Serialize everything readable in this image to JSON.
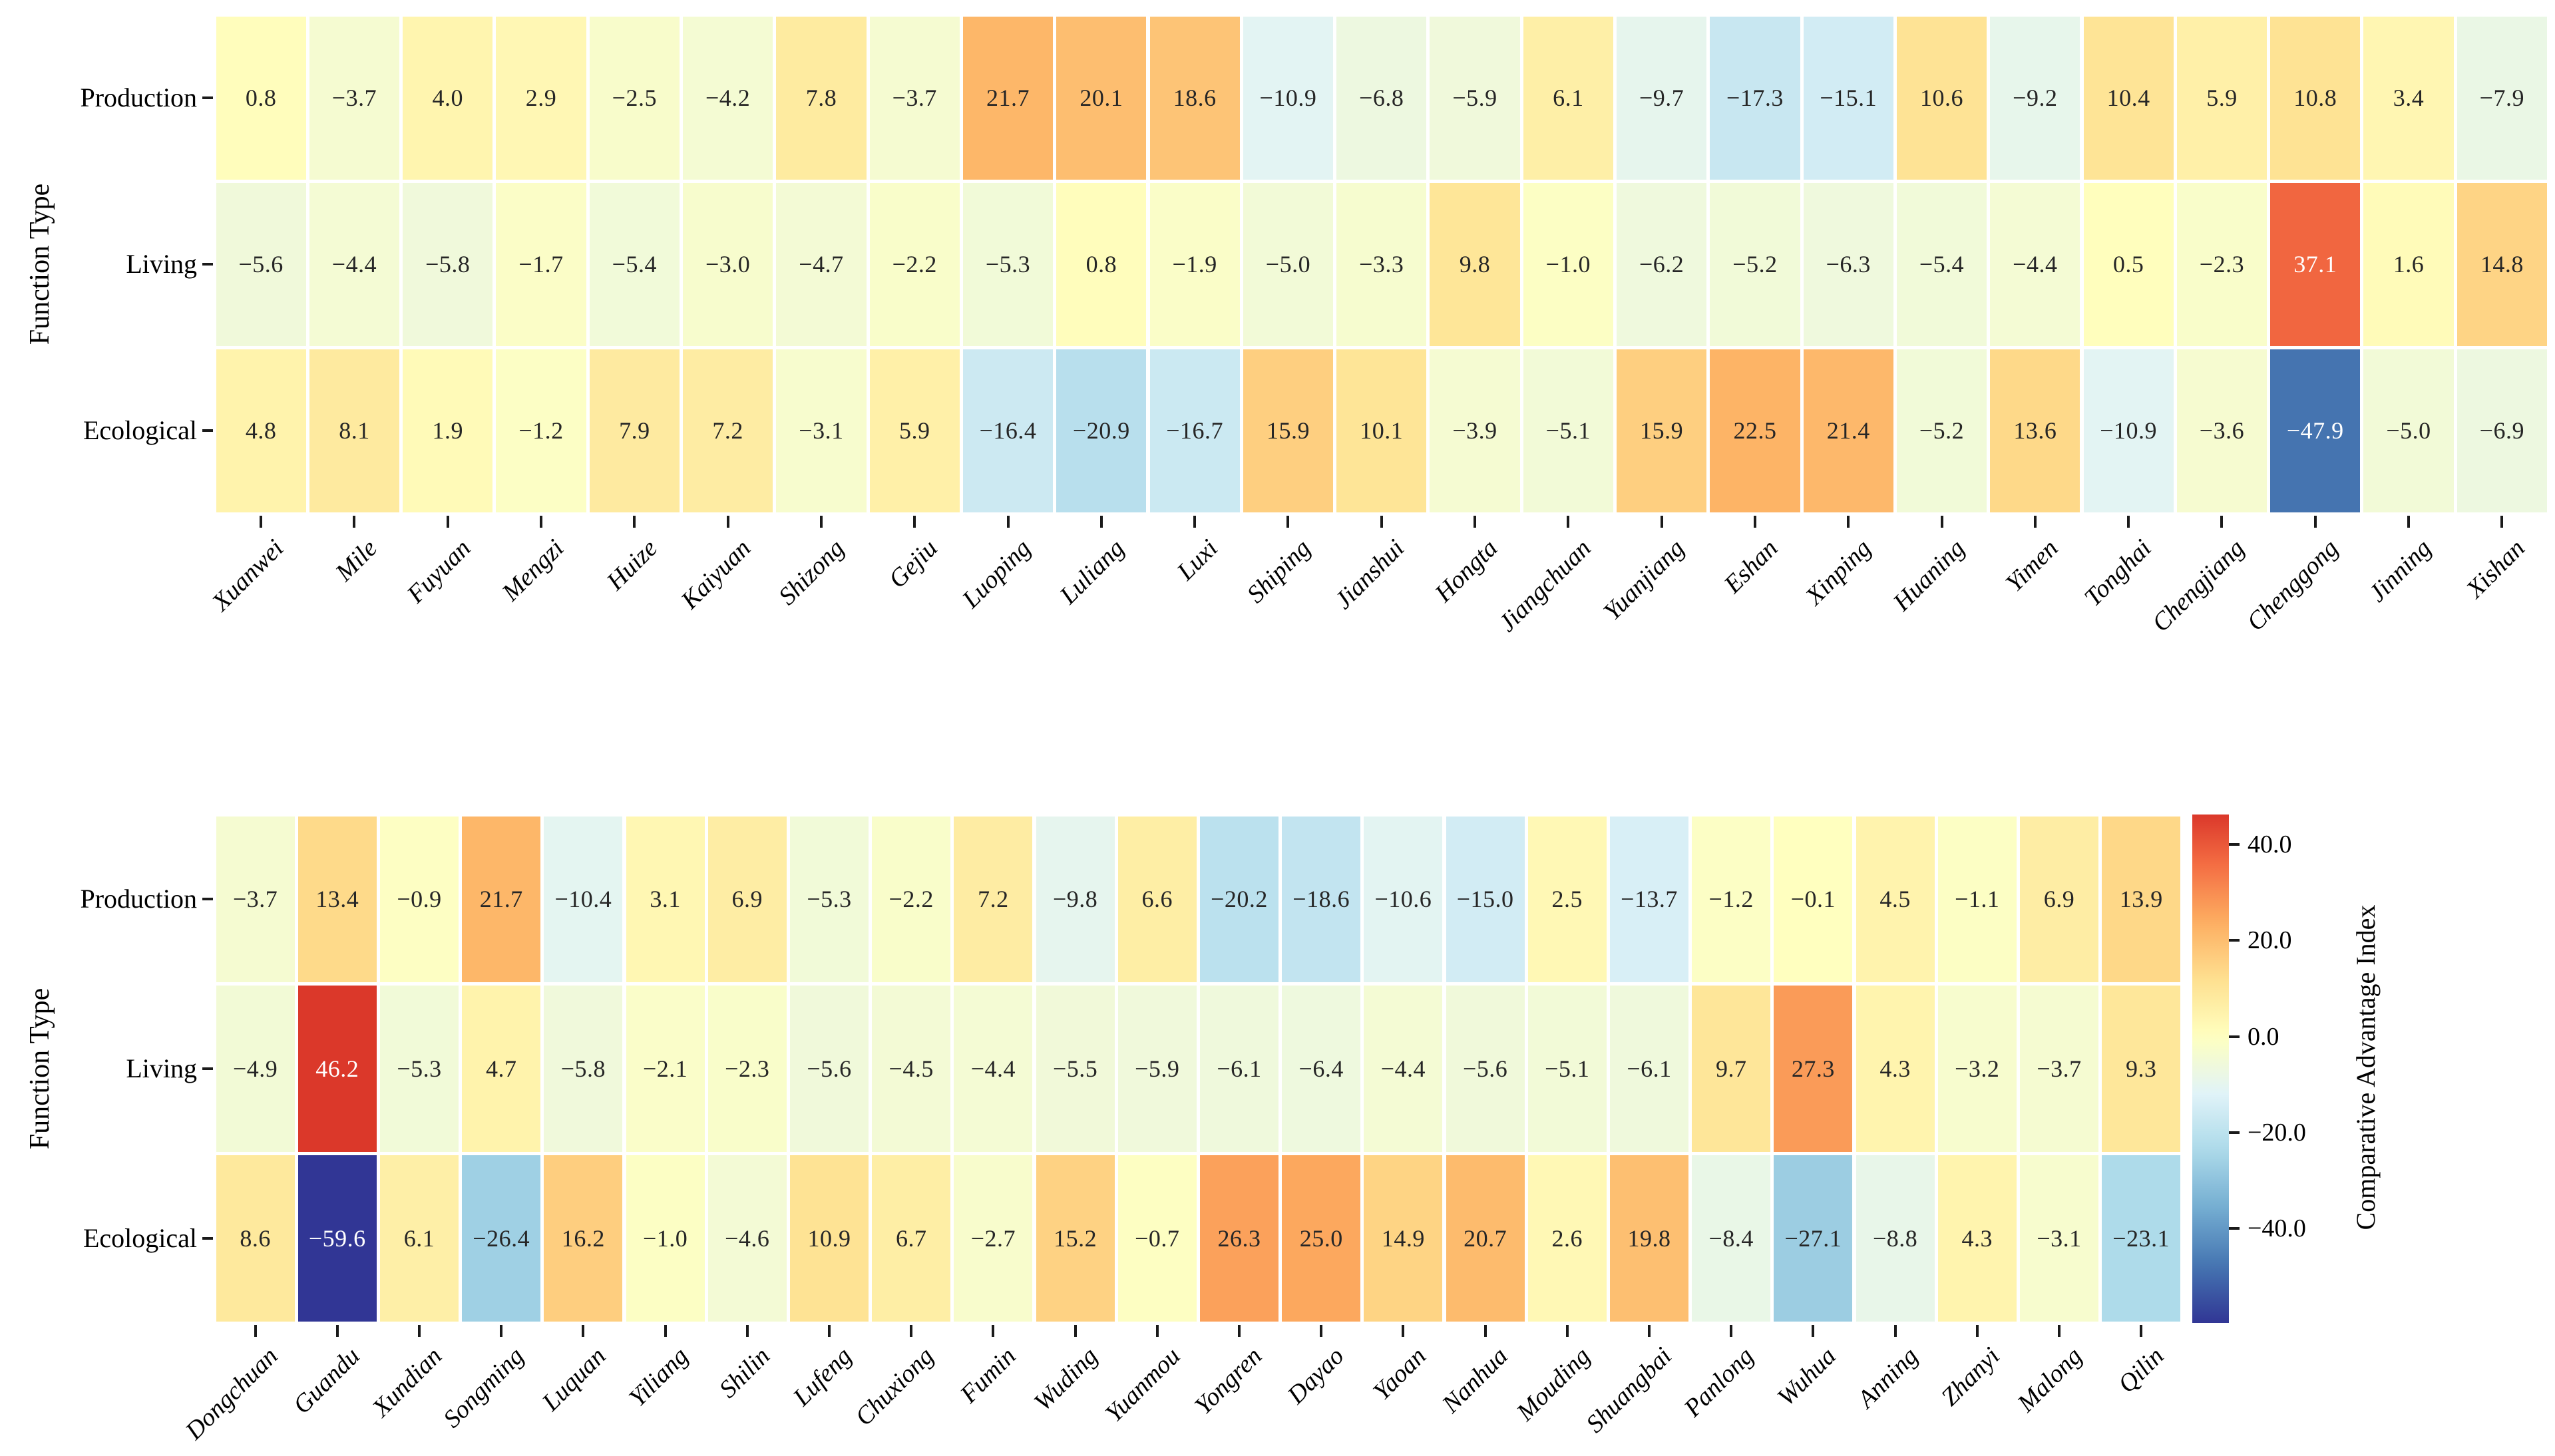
{
  "figure": {
    "background": "#ffffff",
    "annotation_color_dark": "#262626",
    "annotation_color_light": "#ffffff",
    "tick_color": "#1a1a1a"
  },
  "chart_data": {
    "type": "heatmap",
    "grid": true,
    "legend_position": "right",
    "color_scale": {
      "colormap": "RdYlBu_r",
      "anchors": [
        "#a50026",
        "#d73027",
        "#f46d43",
        "#fdae61",
        "#fee090",
        "#ffffbf",
        "#e0f3f8",
        "#abd9e9",
        "#74add1",
        "#4575b1",
        "#313695"
      ],
      "vmin": -59.6,
      "vmax": 46.2,
      "center": 0,
      "label": "Comparative Advantage Index",
      "ticks": [
        40.0,
        20.0,
        0.0,
        -20.0,
        -40.0
      ],
      "tick_labels": [
        "40.0",
        "20.0",
        "0.0",
        "−20.0",
        "−40.0"
      ]
    },
    "panels": [
      {
        "name": "top-heatmap",
        "ylabel": "Function Type",
        "rows": [
          "Production",
          "Living",
          "Ecological"
        ],
        "columns": [
          "Xuanwei",
          "Mile",
          "Fuyuan",
          "Mengzi",
          "Huize",
          "Kaiyuan",
          "Shizong",
          "Gejiu",
          "Luoping",
          "Luliang",
          "Luxi",
          "Shiping",
          "Jianshui",
          "Hongta",
          "Jiangchuan",
          "Yuanjiang",
          "Eshan",
          "Xinping",
          "Huaning",
          "Yimen",
          "Tonghai",
          "Chengjiang",
          "Chenggong",
          "Jinning",
          "Xishan"
        ],
        "values": [
          [
            0.8,
            -3.7,
            4.0,
            2.9,
            -2.5,
            -4.2,
            7.8,
            -3.7,
            21.7,
            20.1,
            18.6,
            -10.9,
            -6.8,
            -5.9,
            6.1,
            -9.7,
            -17.3,
            -15.1,
            10.6,
            -9.2,
            10.4,
            5.9,
            10.8,
            3.4,
            -7.9
          ],
          [
            -5.6,
            -4.4,
            -5.8,
            -1.7,
            -5.4,
            -3.0,
            -4.7,
            -2.2,
            -5.3,
            0.8,
            -1.9,
            -5.0,
            -3.3,
            9.8,
            -1.0,
            -6.2,
            -5.2,
            -6.3,
            -5.4,
            -4.4,
            0.5,
            -2.3,
            37.1,
            1.6,
            14.8
          ],
          [
            4.8,
            8.1,
            1.9,
            -1.2,
            7.9,
            7.2,
            -3.1,
            5.9,
            -16.4,
            -20.9,
            -16.7,
            15.9,
            10.1,
            -3.9,
            -5.1,
            15.9,
            22.5,
            21.4,
            -5.2,
            13.6,
            -10.9,
            -3.6,
            -47.9,
            -5.0,
            -6.9
          ]
        ]
      },
      {
        "name": "bottom-heatmap",
        "ylabel": "Function Type",
        "rows": [
          "Production",
          "Living",
          "Ecological"
        ],
        "columns": [
          "Dongchuan",
          "Guandu",
          "Xundian",
          "Songming",
          "Luquan",
          "Yiliang",
          "Shilin",
          "Lufeng",
          "Chuxiong",
          "Fumin",
          "Wuding",
          "Yuanmou",
          "Yongren",
          "Dayao",
          "Yaoan",
          "Nanhua",
          "Mouding",
          "Shuangbai",
          "Panlong",
          "Wuhua",
          "Anning",
          "Zhanyi",
          "Malong",
          "Qilin"
        ],
        "values": [
          [
            -3.7,
            13.4,
            -0.9,
            21.7,
            -10.4,
            3.1,
            6.9,
            -5.3,
            -2.2,
            7.2,
            -9.8,
            6.6,
            -20.2,
            -18.6,
            -10.6,
            -15.0,
            2.5,
            -13.7,
            -1.2,
            -0.1,
            4.5,
            -1.1,
            6.9,
            13.9
          ],
          [
            -4.9,
            46.2,
            -5.3,
            4.7,
            -5.8,
            -2.1,
            -2.3,
            -5.6,
            -4.5,
            -4.4,
            -5.5,
            -5.9,
            -6.1,
            -6.4,
            -4.4,
            -5.6,
            -5.1,
            -6.1,
            9.7,
            27.3,
            4.3,
            -3.2,
            -3.7,
            9.3
          ],
          [
            8.6,
            -59.6,
            6.1,
            -26.4,
            16.2,
            -1.0,
            -4.6,
            10.9,
            6.7,
            -2.7,
            15.2,
            -0.7,
            26.3,
            25.0,
            14.9,
            20.7,
            2.6,
            19.8,
            -8.4,
            -27.1,
            -8.8,
            4.3,
            -3.1,
            -23.1
          ]
        ]
      }
    ]
  }
}
